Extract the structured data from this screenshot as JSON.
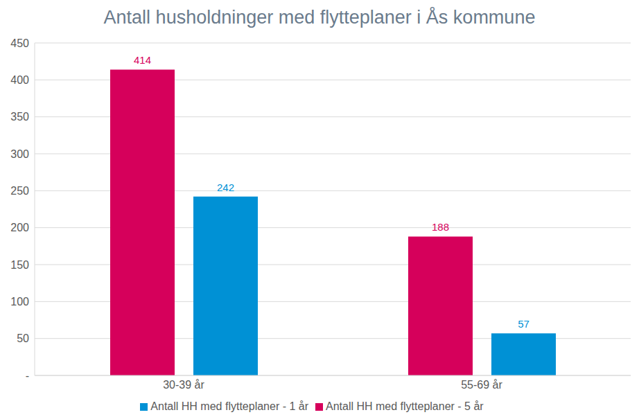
{
  "chart_data": {
    "type": "bar",
    "title": "Antall husholdninger med flytteplaner i Ås kommune",
    "categories": [
      "30-39 år",
      "55-69 år"
    ],
    "series": [
      {
        "name": "Antall HH med flytteplaner - 5 år",
        "color": "#d6005b",
        "values": [
          414,
          188
        ]
      },
      {
        "name": "Antall HH med flytteplaner - 1 år",
        "color": "#0091d5",
        "values": [
          242,
          57
        ]
      }
    ],
    "ylim": [
      0,
      450
    ],
    "yticks": [
      {
        "value": 0,
        "label": "-"
      },
      50,
      100,
      150,
      200,
      250,
      300,
      350,
      400,
      450
    ],
    "grid": true,
    "legend": "bottom",
    "data_labels": true
  }
}
